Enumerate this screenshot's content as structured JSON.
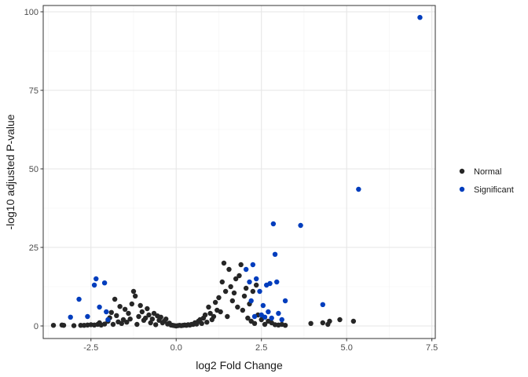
{
  "chart_data": {
    "type": "scatter",
    "title": "",
    "xlabel": "log2 Fold Change",
    "ylabel": "-log10 adjusted P-value",
    "xlim": [
      -3.9,
      7.6
    ],
    "ylim": [
      -4.0,
      102.0
    ],
    "x_ticks": [
      -2.5,
      0.0,
      2.5,
      5.0,
      7.5
    ],
    "x_tick_labels": [
      "-2.5",
      "0.0",
      "2.5",
      "5.0",
      "7.5"
    ],
    "y_ticks": [
      0,
      25,
      50,
      75,
      100
    ],
    "y_tick_labels": [
      "0",
      "25",
      "50",
      "75",
      "100"
    ],
    "grid": true,
    "legend_position": "right",
    "series": [
      {
        "name": "Normal",
        "color": "#262626",
        "points": [
          [
            -3.6,
            0.2
          ],
          [
            -3.35,
            0.3
          ],
          [
            -3.3,
            0.2
          ],
          [
            -3.0,
            0.1
          ],
          [
            -2.8,
            0.2
          ],
          [
            -2.7,
            0.2
          ],
          [
            -2.6,
            0.3
          ],
          [
            -2.5,
            0.4
          ],
          [
            -2.4,
            0.3
          ],
          [
            -2.3,
            0.5
          ],
          [
            -2.25,
            1.0
          ],
          [
            -2.2,
            0.3
          ],
          [
            -2.1,
            0.6
          ],
          [
            -2.0,
            1.5
          ],
          [
            -1.95,
            2.6
          ],
          [
            -1.9,
            4.3
          ],
          [
            -1.85,
            0.5
          ],
          [
            -1.8,
            8.5
          ],
          [
            -1.75,
            3.3
          ],
          [
            -1.7,
            1.3
          ],
          [
            -1.65,
            6.2
          ],
          [
            -1.6,
            0.8
          ],
          [
            -1.55,
            2.0
          ],
          [
            -1.5,
            5.3
          ],
          [
            -1.45,
            1.2
          ],
          [
            -1.4,
            4.0
          ],
          [
            -1.35,
            2.2
          ],
          [
            -1.3,
            7.0
          ],
          [
            -1.25,
            11.0
          ],
          [
            -1.2,
            9.5
          ],
          [
            -1.15,
            0.5
          ],
          [
            -1.1,
            3.0
          ],
          [
            -1.05,
            6.5
          ],
          [
            -1.0,
            4.5
          ],
          [
            -0.95,
            1.8
          ],
          [
            -0.9,
            2.5
          ],
          [
            -0.85,
            5.5
          ],
          [
            -0.8,
            3.5
          ],
          [
            -0.75,
            1.0
          ],
          [
            -0.7,
            2.2
          ],
          [
            -0.65,
            4.0
          ],
          [
            -0.6,
            0.4
          ],
          [
            -0.55,
            3.2
          ],
          [
            -0.5,
            1.8
          ],
          [
            -0.45,
            2.8
          ],
          [
            -0.4,
            1.0
          ],
          [
            -0.35,
            1.5
          ],
          [
            -0.3,
            2.2
          ],
          [
            -0.25,
            0.6
          ],
          [
            -0.2,
            0.9
          ],
          [
            -0.15,
            0.3
          ],
          [
            -0.1,
            0.2
          ],
          [
            -0.05,
            0.1
          ],
          [
            0.0,
            0.0
          ],
          [
            0.05,
            0.1
          ],
          [
            0.1,
            0.2
          ],
          [
            0.15,
            0.1
          ],
          [
            0.2,
            0.2
          ],
          [
            0.25,
            0.3
          ],
          [
            0.3,
            0.2
          ],
          [
            0.35,
            0.4
          ],
          [
            0.4,
            0.3
          ],
          [
            0.45,
            0.5
          ],
          [
            0.5,
            0.5
          ],
          [
            0.55,
            1.0
          ],
          [
            0.6,
            0.6
          ],
          [
            0.65,
            1.5
          ],
          [
            0.7,
            2.0
          ],
          [
            0.75,
            0.8
          ],
          [
            0.8,
            2.5
          ],
          [
            0.85,
            3.5
          ],
          [
            0.9,
            1.2
          ],
          [
            0.95,
            6.0
          ],
          [
            1.0,
            4.0
          ],
          [
            1.05,
            2.0
          ],
          [
            1.1,
            3.0
          ],
          [
            1.15,
            7.5
          ],
          [
            1.2,
            5.0
          ],
          [
            1.25,
            9.0
          ],
          [
            1.3,
            4.5
          ],
          [
            1.35,
            14.0
          ],
          [
            1.4,
            20.0
          ],
          [
            1.45,
            11.0
          ],
          [
            1.5,
            3.0
          ],
          [
            1.55,
            18.0
          ],
          [
            1.6,
            12.5
          ],
          [
            1.65,
            8.0
          ],
          [
            1.7,
            10.5
          ],
          [
            1.75,
            15.0
          ],
          [
            1.8,
            6.0
          ],
          [
            1.85,
            16.0
          ],
          [
            1.9,
            19.5
          ],
          [
            1.95,
            5.0
          ],
          [
            2.0,
            9.5
          ],
          [
            2.05,
            12.0
          ],
          [
            2.1,
            2.5
          ],
          [
            2.15,
            7.0
          ],
          [
            2.2,
            1.5
          ],
          [
            2.25,
            11.0
          ],
          [
            2.3,
            0.8
          ],
          [
            2.35,
            13.0
          ],
          [
            2.4,
            3.5
          ],
          [
            2.5,
            2.0
          ],
          [
            2.6,
            0.5
          ],
          [
            2.7,
            1.5
          ],
          [
            2.8,
            1.0
          ],
          [
            2.9,
            0.4
          ],
          [
            3.0,
            0.3
          ],
          [
            3.1,
            0.5
          ],
          [
            3.2,
            0.2
          ],
          [
            3.95,
            0.8
          ],
          [
            4.3,
            1.0
          ],
          [
            4.45,
            0.5
          ],
          [
            4.5,
            1.5
          ],
          [
            4.8,
            2.0
          ],
          [
            5.2,
            1.5
          ]
        ]
      },
      {
        "name": "Significant",
        "color": "#003dbd",
        "points": [
          [
            -3.1,
            2.8
          ],
          [
            -2.85,
            8.5
          ],
          [
            -2.6,
            3.0
          ],
          [
            -2.4,
            13.0
          ],
          [
            -2.35,
            15.0
          ],
          [
            -2.25,
            6.0
          ],
          [
            -2.1,
            13.7
          ],
          [
            -2.05,
            4.5
          ],
          [
            -2.0,
            2.0
          ],
          [
            2.05,
            18.0
          ],
          [
            2.15,
            14.0
          ],
          [
            2.2,
            8.0
          ],
          [
            2.25,
            19.5
          ],
          [
            2.3,
            3.0
          ],
          [
            2.35,
            15.0
          ],
          [
            2.45,
            11.0
          ],
          [
            2.5,
            3.5
          ],
          [
            2.55,
            6.5
          ],
          [
            2.6,
            2.8
          ],
          [
            2.65,
            13.0
          ],
          [
            2.7,
            4.5
          ],
          [
            2.75,
            13.5
          ],
          [
            2.8,
            2.5
          ],
          [
            2.85,
            32.5
          ],
          [
            2.9,
            22.8
          ],
          [
            2.95,
            14.0
          ],
          [
            3.0,
            4.0
          ],
          [
            3.1,
            2.0
          ],
          [
            3.2,
            8.0
          ],
          [
            3.65,
            32.0
          ],
          [
            4.3,
            6.8
          ],
          [
            5.35,
            43.5
          ],
          [
            7.15,
            98.2
          ]
        ]
      }
    ]
  }
}
